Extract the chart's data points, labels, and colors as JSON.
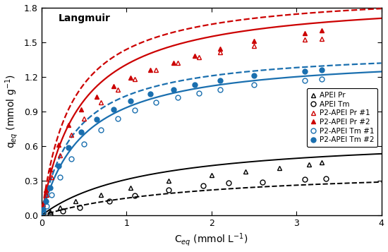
{
  "title": "Langmuir",
  "xlabel": "C$_{eq}$ (mmol L$^{-1}$)",
  "ylabel": "q$_{eq}$ (mmol g$^{-1}$)",
  "xlim": [
    0,
    4
  ],
  "ylim": [
    0,
    1.8
  ],
  "xticks": [
    0,
    1,
    2,
    3,
    4
  ],
  "yticks": [
    0.0,
    0.3,
    0.6,
    0.9,
    1.2,
    1.5,
    1.8
  ],
  "APEI_Pr_x": [
    0.1,
    0.22,
    0.4,
    0.7,
    1.05,
    1.5,
    2.0,
    2.4,
    2.8,
    3.15,
    3.3
  ],
  "APEI_Pr_y": [
    0.03,
    0.07,
    0.12,
    0.18,
    0.24,
    0.3,
    0.35,
    0.38,
    0.41,
    0.44,
    0.46
  ],
  "APEI_Pr_Qmax": 0.7,
  "APEI_Pr_KL": 0.8,
  "APEI_Tm_x": [
    0.1,
    0.25,
    0.45,
    0.8,
    1.1,
    1.5,
    1.9,
    2.2,
    2.6,
    3.1,
    3.35
  ],
  "APEI_Tm_y": [
    0.01,
    0.04,
    0.07,
    0.12,
    0.17,
    0.22,
    0.26,
    0.28,
    0.29,
    0.31,
    0.32
  ],
  "APEI_Tm_Qmax": 0.42,
  "APEI_Tm_KL": 0.55,
  "P2APEI_Pr1_x": [
    0.02,
    0.06,
    0.12,
    0.22,
    0.35,
    0.5,
    0.7,
    0.9,
    1.1,
    1.35,
    1.6,
    1.85,
    2.1,
    2.5,
    3.1,
    3.3
  ],
  "P2APEI_Pr1_y": [
    0.08,
    0.18,
    0.33,
    0.52,
    0.7,
    0.84,
    0.98,
    1.09,
    1.18,
    1.26,
    1.32,
    1.37,
    1.41,
    1.47,
    1.52,
    1.53
  ],
  "P2APEI_Pr2_x": [
    0.02,
    0.05,
    0.1,
    0.2,
    0.32,
    0.47,
    0.65,
    0.85,
    1.05,
    1.28,
    1.55,
    1.8,
    2.1,
    2.5,
    3.1,
    3.3
  ],
  "P2APEI_Pr2_y": [
    0.1,
    0.22,
    0.4,
    0.61,
    0.78,
    0.92,
    1.03,
    1.12,
    1.19,
    1.26,
    1.32,
    1.38,
    1.44,
    1.51,
    1.58,
    1.6
  ],
  "P2APEI_Pr1_Qmax": 1.9,
  "P2APEI_Pr1_KL": 2.2,
  "P2APEI_Pr2_Qmax": 1.95,
  "P2APEI_Pr2_KL": 2.8,
  "P2APEI_Tm1_x": [
    0.02,
    0.06,
    0.12,
    0.22,
    0.35,
    0.5,
    0.7,
    0.9,
    1.1,
    1.35,
    1.6,
    1.85,
    2.1,
    2.5,
    3.1,
    3.3
  ],
  "P2APEI_Tm1_y": [
    0.03,
    0.08,
    0.18,
    0.33,
    0.49,
    0.62,
    0.74,
    0.84,
    0.91,
    0.98,
    1.02,
    1.06,
    1.09,
    1.13,
    1.17,
    1.18
  ],
  "P2APEI_Tm2_x": [
    0.02,
    0.05,
    0.1,
    0.2,
    0.32,
    0.47,
    0.65,
    0.85,
    1.05,
    1.28,
    1.55,
    1.8,
    2.1,
    2.5,
    3.1,
    3.3
  ],
  "P2APEI_Tm2_y": [
    0.05,
    0.12,
    0.24,
    0.43,
    0.59,
    0.72,
    0.83,
    0.92,
    0.99,
    1.05,
    1.09,
    1.13,
    1.17,
    1.21,
    1.25,
    1.26
  ],
  "P2APEI_Tm1_Qmax": 1.4,
  "P2APEI_Tm1_KL": 2.0,
  "P2APEI_Tm2_Qmax": 1.45,
  "P2APEI_Tm2_KL": 2.5,
  "color_black": "#000000",
  "color_red": "#cc0000",
  "color_blue": "#1a6faf"
}
